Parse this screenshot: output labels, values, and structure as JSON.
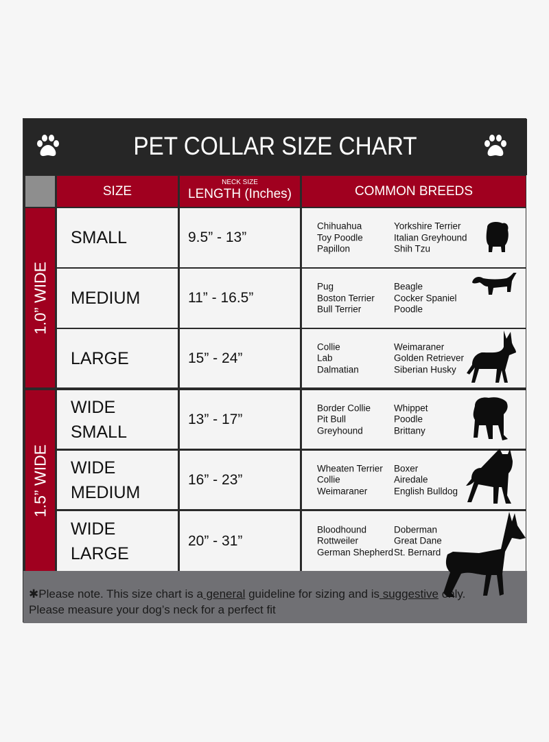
{
  "title": "PET COLLAR SIZE CHART",
  "headers": {
    "size": "SIZE",
    "length_top": "NECK SIZE",
    "length": "LENGTH (Inches)",
    "breeds": "COMMON BREEDS"
  },
  "groups": [
    "1.0” WIDE",
    "1.5” WIDE"
  ],
  "rows": [
    {
      "size": "SMALL",
      "length": "9.5” - 13”",
      "breeds_a": [
        "Chihuahua",
        "Toy Poodle",
        "Papillon"
      ],
      "breeds_b": [
        "Yorkshire Terrier",
        "Italian Greyhound",
        "Shih Tzu"
      ]
    },
    {
      "size": "MEDIUM",
      "length": "11” - 16.5”",
      "breeds_a": [
        "Pug",
        "Boston Terrier",
        "Bull Terrier"
      ],
      "breeds_b": [
        "Beagle",
        "Cocker Spaniel",
        "Poodle"
      ]
    },
    {
      "size": "LARGE",
      "length": "15” - 24”",
      "breeds_a": [
        "Collie",
        "Lab",
        "Dalmatian"
      ],
      "breeds_b": [
        "Weimaraner",
        "Golden Retriever",
        "Siberian Husky"
      ]
    },
    {
      "size": "WIDE\nSMALL",
      "length": "13” - 17”",
      "breeds_a": [
        "Border Collie",
        "Pit Bull",
        "Greyhound"
      ],
      "breeds_b": [
        "Whippet",
        "Poodle",
        "Brittany"
      ]
    },
    {
      "size": "WIDE\nMEDIUM",
      "length": "16” - 23”",
      "breeds_a": [
        "Wheaten Terrier",
        "Collie",
        "Weimaraner"
      ],
      "breeds_b": [
        "Boxer",
        "Airedale",
        "English Bulldog"
      ]
    },
    {
      "size": "WIDE\nLARGE",
      "length": "20” - 31”",
      "breeds_a": [
        "Bloodhound",
        "Rottweiler",
        "German Shepherd"
      ],
      "breeds_b": [
        "Doberman",
        "Great Dane",
        "St. Bernard"
      ]
    }
  ],
  "footer": {
    "p1": "✱Please note. This size chart is a",
    "u1": " general",
    "p2": " guideline for sizing and is",
    "u2": " suggestive",
    "p3": " only.",
    "line2": "Please measure your dog’s neck for a perfect fit"
  },
  "colors": {
    "header_bg": "#262626",
    "accent_red": "#a0001f",
    "footer_gray": "#707074",
    "cell_bg": "#f4f4f4"
  },
  "icons": [
    "paw-icon",
    "dog-silhouette-icon"
  ]
}
